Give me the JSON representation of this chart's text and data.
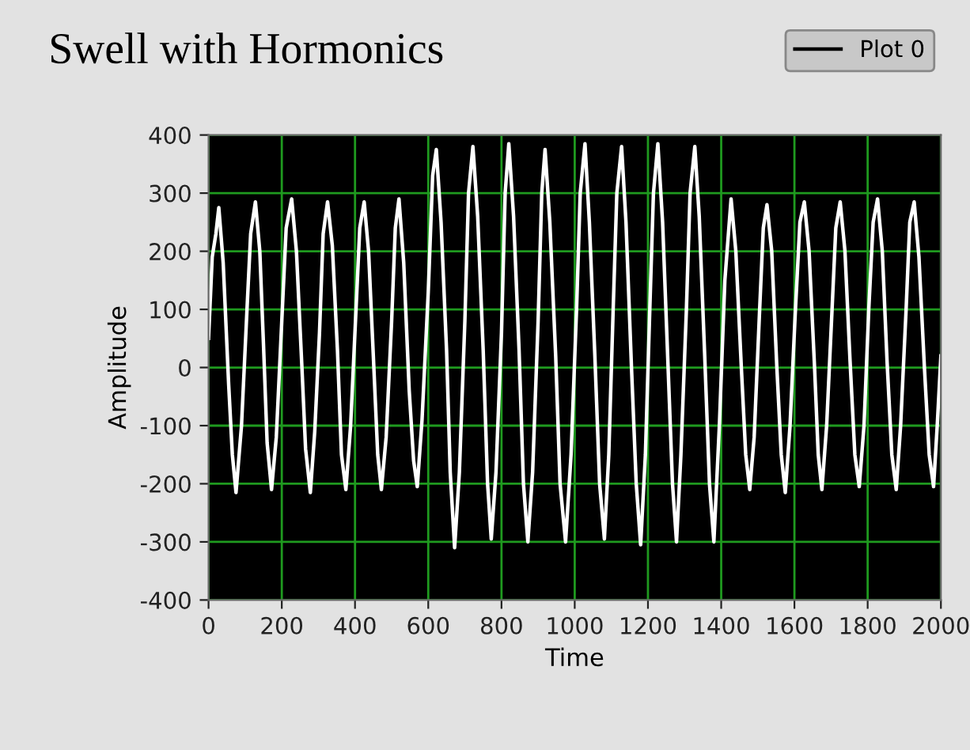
{
  "chart_data": {
    "type": "line",
    "title": "Swell with Hormonics",
    "xlabel": "Time",
    "ylabel": "Amplitude",
    "xlim": [
      0,
      2000
    ],
    "ylim": [
      -400,
      400
    ],
    "xticks": [
      0,
      200,
      400,
      600,
      800,
      1000,
      1200,
      1400,
      1600,
      1800,
      2000
    ],
    "yticks": [
      -400,
      -300,
      -200,
      -100,
      0,
      100,
      200,
      300,
      400
    ],
    "grid": true,
    "legend": "top right",
    "marker": "none",
    "line_style": "solid",
    "series": [
      {
        "name": "Plot 0",
        "color": "#ffffff",
        "x": [
          0,
          10,
          20,
          28,
          40,
          55,
          65,
          75,
          90,
          105,
          115,
          128,
          140,
          150,
          160,
          172,
          185,
          200,
          212,
          227,
          240,
          255,
          265,
          278,
          290,
          303,
          313,
          325,
          338,
          352,
          363,
          375,
          388,
          402,
          413,
          425,
          437,
          450,
          462,
          472,
          485,
          500,
          510,
          520,
          533,
          548,
          560,
          570,
          583,
          600,
          612,
          622,
          635,
          650,
          660,
          672,
          685,
          700,
          710,
          722,
          735,
          750,
          762,
          772,
          785,
          800,
          810,
          820,
          833,
          848,
          860,
          872,
          885,
          900,
          910,
          919,
          932,
          948,
          960,
          975,
          990,
          1005,
          1015,
          1028,
          1040,
          1055,
          1068,
          1081,
          1093,
          1105,
          1115,
          1128,
          1140,
          1155,
          1168,
          1180,
          1193,
          1205,
          1215,
          1227,
          1240,
          1255,
          1267,
          1278,
          1290,
          1305,
          1315,
          1328,
          1340,
          1355,
          1368,
          1380,
          1395,
          1410,
          1427,
          1440,
          1455,
          1467,
          1478,
          1490,
          1505,
          1515,
          1525,
          1538,
          1552,
          1564,
          1575,
          1588,
          1602,
          1615,
          1627,
          1640,
          1655,
          1665,
          1675,
          1688,
          1702,
          1713,
          1725,
          1738,
          1752,
          1765,
          1777,
          1790,
          1803,
          1815,
          1827,
          1840,
          1853,
          1866,
          1878,
          1890,
          1905,
          1915,
          1927,
          1940,
          1955,
          1968,
          1980,
          1990,
          2000
        ],
        "values": [
          50,
          190,
          230,
          275,
          180,
          -30,
          -150,
          -215,
          -100,
          100,
          230,
          285,
          200,
          40,
          -130,
          -210,
          -120,
          80,
          240,
          290,
          200,
          0,
          -140,
          -215,
          -110,
          60,
          230,
          285,
          210,
          30,
          -150,
          -210,
          -100,
          90,
          240,
          285,
          200,
          20,
          -150,
          -210,
          -120,
          80,
          240,
          290,
          180,
          -40,
          -160,
          -205,
          -90,
          130,
          330,
          375,
          250,
          30,
          -180,
          -310,
          -180,
          80,
          300,
          380,
          260,
          30,
          -200,
          -295,
          -180,
          60,
          300,
          385,
          260,
          30,
          -200,
          -300,
          -180,
          80,
          300,
          375,
          250,
          20,
          -200,
          -300,
          -150,
          100,
          300,
          385,
          250,
          20,
          -200,
          -295,
          -150,
          100,
          300,
          380,
          250,
          0,
          -200,
          -305,
          -150,
          100,
          300,
          385,
          250,
          0,
          -200,
          -300,
          -150,
          100,
          300,
          380,
          260,
          20,
          -200,
          -300,
          -100,
          150,
          290,
          200,
          0,
          -150,
          -210,
          -120,
          100,
          240,
          280,
          200,
          0,
          -150,
          -215,
          -100,
          90,
          250,
          285,
          200,
          0,
          -150,
          -210,
          -100,
          90,
          240,
          285,
          200,
          10,
          -150,
          -205,
          -100,
          100,
          250,
          290,
          200,
          10,
          -150,
          -210,
          -100,
          100,
          250,
          285,
          190,
          0,
          -150,
          -205,
          -100,
          20
        ]
      }
    ]
  }
}
